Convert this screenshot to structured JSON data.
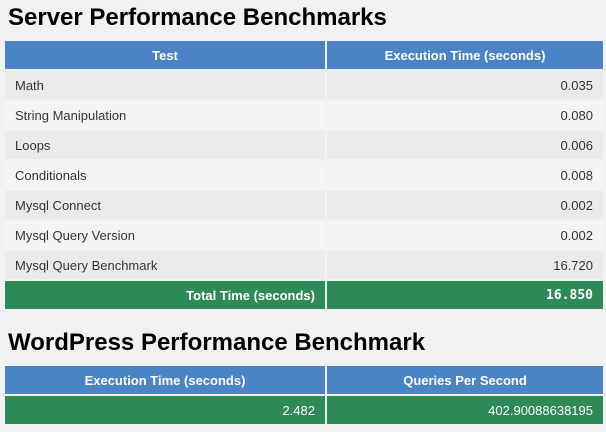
{
  "server": {
    "title": "Server Performance Benchmarks",
    "headers": [
      "Test",
      "Execution Time (seconds)"
    ],
    "rows": [
      {
        "test": "Math",
        "time": "0.035"
      },
      {
        "test": "String Manipulation",
        "time": "0.080"
      },
      {
        "test": "Loops",
        "time": "0.006"
      },
      {
        "test": "Conditionals",
        "time": "0.008"
      },
      {
        "test": "Mysql Connect",
        "time": "0.002"
      },
      {
        "test": "Mysql Query Version",
        "time": "0.002"
      },
      {
        "test": "Mysql Query Benchmark",
        "time": "16.720"
      }
    ],
    "total_label": "Total Time (seconds)",
    "total_value": "16.850"
  },
  "wordpress": {
    "title": "WordPress Performance Benchmark",
    "headers": [
      "Execution Time (seconds)",
      "Queries Per Second"
    ],
    "execution_time": "2.482",
    "queries_per_second": "402.90088638195"
  },
  "colors": {
    "header_bg": "#4a84c4",
    "total_bg": "#2e8b57",
    "row_odd": "#eaeaea",
    "row_even": "#f4f4f4"
  }
}
